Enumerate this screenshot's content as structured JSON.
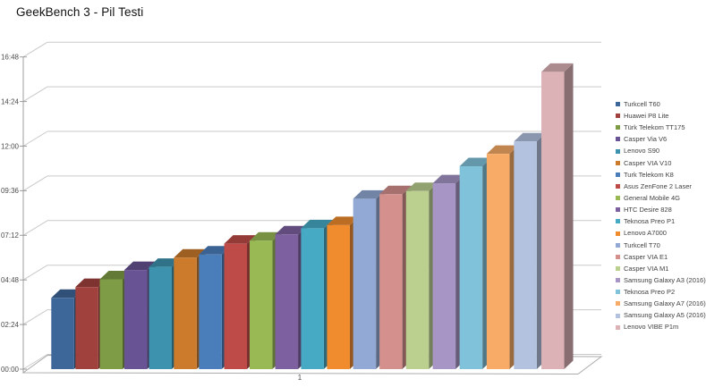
{
  "title": "GeekBench 3 - Pil Testi",
  "chart_data": {
    "type": "bar",
    "projection": "3d",
    "title": "GeekBench 3 - Pil Testi",
    "categories": [
      "1"
    ],
    "x_axis_label": "1",
    "y_ticks": [
      "00:00",
      "02:24",
      "04:48",
      "07:12",
      "09:36",
      "12:00",
      "14:24",
      "16:48"
    ],
    "y_axis_format": "hh:mm",
    "y_min": "00:00",
    "y_max": "16:48",
    "grid": true,
    "legend_position": "right",
    "series": [
      {
        "name": "Turkcell T60",
        "color": "#3D6799",
        "value": "3:50"
      },
      {
        "name": "Huawei P8 Lite",
        "color": "#A1413E",
        "value": "4:25"
      },
      {
        "name": "Türk Telekom TT175",
        "color": "#7E9C45",
        "value": "4:50"
      },
      {
        "name": "Casper Via V6",
        "color": "#685394",
        "value": "5:20"
      },
      {
        "name": "Lenovo S90",
        "color": "#3D93AE",
        "value": "5:30"
      },
      {
        "name": "Casper VIA V10",
        "color": "#CB7B2B",
        "value": "6:00"
      },
      {
        "name": "Turk Telekom K8",
        "color": "#4A7EBB",
        "value": "6:10"
      },
      {
        "name": "Asus ZenFone 2 Laser",
        "color": "#BE4B48",
        "value": "6:45"
      },
      {
        "name": "General Mobile 4G",
        "color": "#98B954",
        "value": "6:55"
      },
      {
        "name": "HTC Desire 828",
        "color": "#7D60A0",
        "value": "7:15"
      },
      {
        "name": "Teknosa Preo P1",
        "color": "#46AAC5",
        "value": "7:35"
      },
      {
        "name": "Lenovo A7000",
        "color": "#F08C2E",
        "value": "7:45"
      },
      {
        "name": "Turkcell T70",
        "color": "#92A9D5",
        "value": "9:10"
      },
      {
        "name": "Casper VIA E1",
        "color": "#D4908D",
        "value": "9:25"
      },
      {
        "name": "Casper VIA M1",
        "color": "#BBCF8F",
        "value": "9:35"
      },
      {
        "name": "Samsung Galaxy A3 (2016)",
        "color": "#A695C5",
        "value": "10:00"
      },
      {
        "name": "Teknosa Preo P2",
        "color": "#7FC2D9",
        "value": "10:55"
      },
      {
        "name": "Samsung Galaxy A7 (2016)",
        "color": "#F8AB66",
        "value": "11:35"
      },
      {
        "name": "Samsung Galaxy A5 (2016)",
        "color": "#B2C2DF",
        "value": "12:15"
      },
      {
        "name": "Lenovo VIBE P1m",
        "color": "#DCB2B7",
        "value": "16:00"
      }
    ],
    "colors": {
      "gridline": "#C9C9C9",
      "axis_line": "#9C9C9C",
      "floor_edge": "#ABABAB",
      "tick_label": "#4D4D4D",
      "x_label": "#4D4D4D",
      "legend_text": "#3F3F3F",
      "title_text": "#111111",
      "background": "#FFFFFF"
    }
  }
}
